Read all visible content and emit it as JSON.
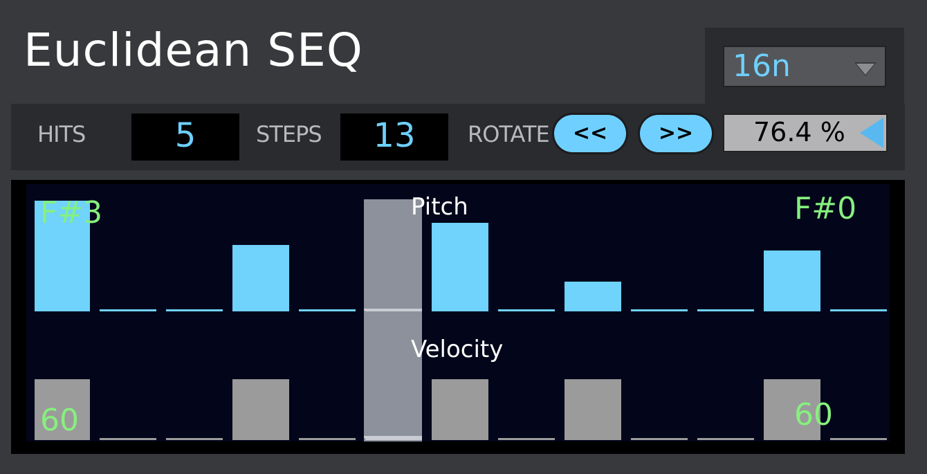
{
  "header": {
    "title": "Euclidean SEQ"
  },
  "rate": {
    "value": "16n"
  },
  "toolbar": {
    "hits_label": "HITS",
    "hits_value": "5",
    "steps_label": "STEPS",
    "steps_value": "13",
    "rotate_label": "ROTATE",
    "rotate_left": "<<",
    "rotate_right": ">>",
    "percent": "76.4 %"
  },
  "sequencer": {
    "pitch_label": "Pitch",
    "velocity_label": "Velocity",
    "pitch_max_label": "F#3",
    "pitch_min_label": "F#0",
    "velocity_left_label": "60",
    "velocity_right_label": "60",
    "current_step": 6,
    "steps": [
      {
        "hit": true,
        "pitch": 1.0,
        "velocity": 1.0
      },
      {
        "hit": false,
        "pitch": 0.0,
        "velocity": 0.0
      },
      {
        "hit": false,
        "pitch": 0.0,
        "velocity": 0.0
      },
      {
        "hit": true,
        "pitch": 0.6,
        "velocity": 1.0
      },
      {
        "hit": false,
        "pitch": 0.0,
        "velocity": 0.0
      },
      {
        "hit": false,
        "pitch": 0.0,
        "velocity": 0.0
      },
      {
        "hit": true,
        "pitch": 0.8,
        "velocity": 1.0
      },
      {
        "hit": false,
        "pitch": 0.0,
        "velocity": 0.0
      },
      {
        "hit": true,
        "pitch": 0.27,
        "velocity": 1.0
      },
      {
        "hit": false,
        "pitch": 0.0,
        "velocity": 0.0
      },
      {
        "hit": false,
        "pitch": 0.0,
        "velocity": 0.0
      },
      {
        "hit": true,
        "pitch": 0.55,
        "velocity": 1.0
      },
      {
        "hit": false,
        "pitch": 0.0,
        "velocity": 0.0
      }
    ]
  }
}
